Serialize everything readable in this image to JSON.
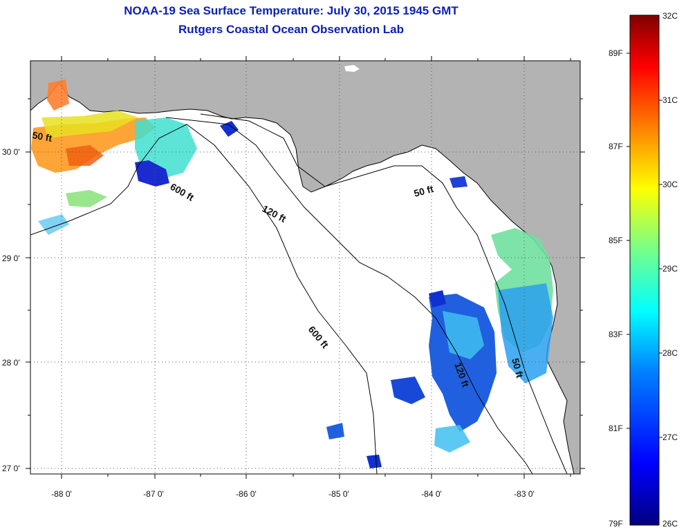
{
  "title": "NOAA-19 Sea Surface Temperature:  July 30, 2015 1945 GMT",
  "subtitle": "Rutgers Coastal Ocean Observation Lab",
  "map": {
    "lon_ticks": [
      "-88 0'",
      "-87 0'",
      "-86 0'",
      "-85 0'",
      "-84 0'",
      "-83 0'"
    ],
    "lat_ticks": [
      "30 0'",
      "29 0'",
      "28 0'",
      "27 0'"
    ],
    "contour_labels": [
      "50 ft",
      "600 ft",
      "120 ft",
      "50 ft",
      "600 ft",
      "120 ft",
      "50 ft"
    ],
    "colors": {
      "land": "#b3b3b3",
      "water": "#ffffff",
      "coast": "#000000"
    }
  },
  "colorbar": {
    "celsius": [
      "32C",
      "31C",
      "30C",
      "29C",
      "28C",
      "27C",
      "26C"
    ],
    "fahrenheit": [
      "89F",
      "87F",
      "85F",
      "83F",
      "81F",
      "79F"
    ],
    "stops": [
      "#000080",
      "#0000ff",
      "#0080ff",
      "#00ffff",
      "#80ff80",
      "#ffff00",
      "#ff8000",
      "#ff0000",
      "#800000"
    ]
  }
}
